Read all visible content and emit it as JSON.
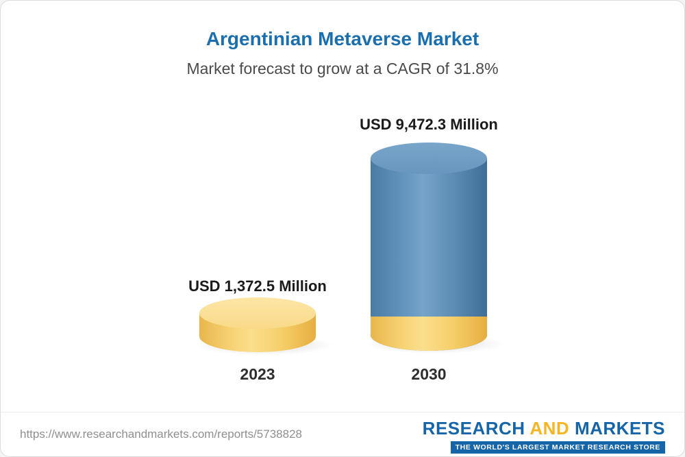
{
  "chart_data": {
    "type": "bar",
    "title": "Argentinian Metaverse Market",
    "subtitle": "Market forecast to grow at a CAGR of 31.8%",
    "unit": "USD Million",
    "cagr": "31.8%",
    "categories": [
      "2023",
      "2030"
    ],
    "values": [
      1372.5,
      9472.3
    ],
    "value_labels": [
      "USD 1,372.5 Million",
      "USD 9,472.3 Million"
    ],
    "ylim": [
      0,
      10000
    ],
    "grid": false,
    "legend": "none",
    "bar_style": "3d-cylinder",
    "colors": {
      "title_text": "#1c6fad",
      "bar_2023": "#f5cd67",
      "bar_2030": "#5e8db5",
      "bar_2030_base_band": "#f5cd67"
    }
  },
  "footer": {
    "url": "https://www.researchandmarkets.com/reports/5738828",
    "logo": {
      "word1": "RESEARCH",
      "word2": "AND",
      "word3": "MARKETS",
      "tagline": "THE WORLD'S LARGEST MARKET RESEARCH STORE"
    }
  }
}
